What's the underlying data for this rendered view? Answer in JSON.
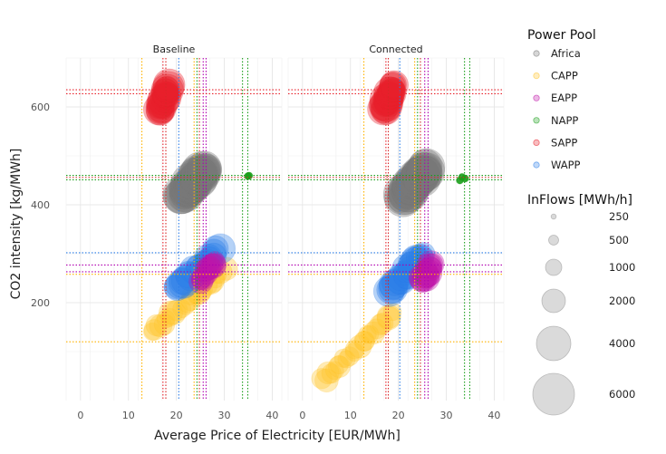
{
  "chart_data": {
    "type": "scatter",
    "facets": [
      {
        "label": "Baseline",
        "clusters": [
          {
            "pool": "CAPP",
            "start": [
              15,
              140
            ],
            "end": [
              30,
              265
            ],
            "size": 1300,
            "n": 26
          },
          {
            "pool": "WAPP",
            "start": [
              20,
              230
            ],
            "end": [
              29,
              312
            ],
            "size": 2200,
            "n": 22
          },
          {
            "pool": "EAPP",
            "start": [
              25,
              245
            ],
            "end": [
              28,
              282
            ],
            "size": 1400,
            "n": 14
          },
          {
            "pool": "Africa",
            "start": [
              21,
              415
            ],
            "end": [
              26,
              475
            ],
            "size": 4200,
            "n": 40
          },
          {
            "pool": "SAPP",
            "start": [
              16.5,
              590
            ],
            "end": [
              18.5,
              645
            ],
            "size": 2600,
            "n": 25
          },
          {
            "pool": "NAPP",
            "start": [
              34.8,
              460
            ],
            "end": [
              35.2,
              462
            ],
            "size": 250,
            "n": 2
          }
        ],
        "vlines": [
          {
            "pool": "CAPP",
            "x": 12.8
          },
          {
            "pool": "SAPP",
            "x": 17.2
          },
          {
            "pool": "Africa",
            "x": 17.8
          },
          {
            "pool": "WAPP",
            "x": 20.5
          },
          {
            "pool": "CAPP",
            "x": 23.7
          },
          {
            "pool": "NAPP",
            "x": 24.3
          },
          {
            "pool": "Africa",
            "x": 24.8
          },
          {
            "pool": "EAPP",
            "x": 25.6
          },
          {
            "pool": "EAPP",
            "x": 26.2
          },
          {
            "pool": "NAPP",
            "x": 33.8
          },
          {
            "pool": "NAPP",
            "x": 34.9
          }
        ],
        "hlines": [
          {
            "pool": "SAPP",
            "y": 635
          },
          {
            "pool": "SAPP",
            "y": 627
          },
          {
            "pool": "NAPP",
            "y": 460
          },
          {
            "pool": "Africa",
            "y": 456
          },
          {
            "pool": "NAPP",
            "y": 451
          },
          {
            "pool": "WAPP",
            "y": 302
          },
          {
            "pool": "EAPP",
            "y": 277
          },
          {
            "pool": "EAPP",
            "y": 263
          },
          {
            "pool": "CAPP",
            "y": 258
          },
          {
            "pool": "CAPP",
            "y": 120
          }
        ]
      },
      {
        "label": "Connected",
        "clusters": [
          {
            "pool": "CAPP",
            "start": [
              4,
              40
            ],
            "end": [
              19,
              178
            ],
            "size": 1300,
            "n": 24
          },
          {
            "pool": "WAPP",
            "start": [
              18,
              225
            ],
            "end": [
              25,
              295
            ],
            "size": 2400,
            "n": 22
          },
          {
            "pool": "EAPP",
            "start": [
              25,
              245
            ],
            "end": [
              27,
              280
            ],
            "size": 1700,
            "n": 14
          },
          {
            "pool": "Africa",
            "start": [
              21,
              415
            ],
            "end": [
              26,
              475
            ],
            "size": 4200,
            "n": 40
          },
          {
            "pool": "SAPP",
            "start": [
              17,
              592
            ],
            "end": [
              19,
              645
            ],
            "size": 2600,
            "n": 25
          },
          {
            "pool": "NAPP",
            "start": [
              33.2,
              451
            ],
            "end": [
              33.8,
              455
            ],
            "size": 300,
            "n": 3
          }
        ],
        "vlines": [
          {
            "pool": "CAPP",
            "x": 12.8
          },
          {
            "pool": "SAPP",
            "x": 17.4
          },
          {
            "pool": "Africa",
            "x": 17.9
          },
          {
            "pool": "WAPP",
            "x": 20.3
          },
          {
            "pool": "CAPP",
            "x": 23.4
          },
          {
            "pool": "NAPP",
            "x": 24.0
          },
          {
            "pool": "Africa",
            "x": 24.6
          },
          {
            "pool": "EAPP",
            "x": 25.5
          },
          {
            "pool": "EAPP",
            "x": 26.2
          },
          {
            "pool": "NAPP",
            "x": 33.8
          },
          {
            "pool": "NAPP",
            "x": 34.9
          }
        ],
        "hlines": [
          {
            "pool": "SAPP",
            "y": 635
          },
          {
            "pool": "SAPP",
            "y": 627
          },
          {
            "pool": "NAPP",
            "y": 460
          },
          {
            "pool": "Africa",
            "y": 456
          },
          {
            "pool": "NAPP",
            "y": 451
          },
          {
            "pool": "WAPP",
            "y": 302
          },
          {
            "pool": "EAPP",
            "y": 277
          },
          {
            "pool": "EAPP",
            "y": 263
          },
          {
            "pool": "CAPP",
            "y": 258
          },
          {
            "pool": "CAPP",
            "y": 120
          }
        ]
      }
    ],
    "xlabel": "Average Price of Electricity [EUR/MWh]",
    "ylabel": "CO2 intensity [kg/MWh]",
    "xlim": [
      -3,
      42
    ],
    "ylim": [
      0,
      700
    ],
    "xticks": [
      0,
      10,
      20,
      30,
      40
    ],
    "yticks": [
      200,
      400,
      600
    ],
    "grid": true,
    "legend_color": {
      "title": "Power Pool",
      "items": [
        "Africa",
        "CAPP",
        "EAPP",
        "NAPP",
        "SAPP",
        "WAPP"
      ]
    },
    "legend_size": {
      "title": "InFlows [MWh/h]",
      "items": [
        250,
        500,
        1000,
        2000,
        4000,
        6000
      ]
    },
    "colors": {
      "Africa": "#777777",
      "CAPP": "#ffc52a",
      "EAPP": "#c013a8",
      "NAPP": "#1a9e1a",
      "SAPP": "#e8202a",
      "WAPP": "#2a7de8"
    },
    "line_colors": {
      "Africa": "#d62728",
      "CAPP": "#ffb300",
      "EAPP": "#b000b0",
      "NAPP": "#1a9e1a",
      "SAPP": "#e8202a",
      "WAPP": "#2a7de8"
    }
  }
}
